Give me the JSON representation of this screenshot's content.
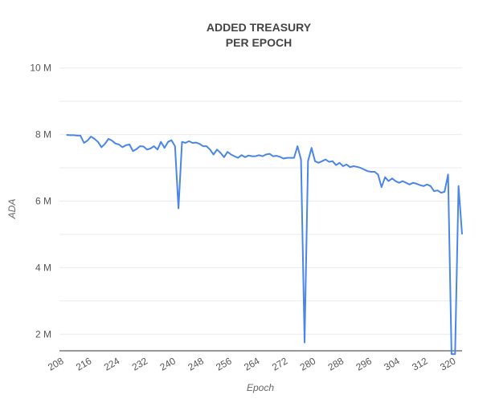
{
  "chart_data": {
    "type": "line",
    "title": [
      "ADDED TREASURY",
      "PER EPOCH"
    ],
    "xlabel": "Epoch",
    "ylabel": "ADA",
    "xlim": [
      208,
      323
    ],
    "ylim": [
      1.5,
      10.5
    ],
    "x_ticks": [
      208,
      216,
      224,
      232,
      240,
      248,
      256,
      264,
      272,
      280,
      288,
      296,
      304,
      312,
      320
    ],
    "y_ticks": [
      2,
      4,
      6,
      8,
      10
    ],
    "y_tick_labels": [
      "2 M",
      "4 M",
      "6 M",
      "8 M",
      "10 M"
    ],
    "grid": true,
    "legend": "none",
    "colors": {
      "line": "#4a86e8"
    },
    "series": [
      {
        "x": [
          210,
          211,
          212,
          213,
          214,
          215,
          216,
          217,
          218,
          219,
          220,
          221,
          222,
          223,
          224,
          225,
          226,
          227,
          228,
          229,
          230,
          231,
          232,
          233,
          234,
          235,
          236,
          237,
          238,
          239,
          240,
          241,
          242,
          243,
          244,
          245,
          246,
          247,
          248,
          249,
          250,
          251,
          252,
          253,
          254,
          255,
          256,
          257,
          258,
          259,
          260,
          261,
          262,
          263,
          264,
          265,
          266,
          267,
          268,
          269,
          270,
          271,
          272,
          273,
          274,
          275,
          276,
          277,
          278,
          279,
          280,
          281,
          282,
          283,
          284,
          285,
          286,
          287,
          288,
          289,
          290,
          291,
          292,
          293,
          294,
          295,
          296,
          297,
          298,
          299,
          300,
          301,
          302,
          303,
          304,
          305,
          306,
          307,
          308,
          309,
          310,
          311,
          312,
          313,
          314,
          315,
          316,
          317,
          318,
          319,
          320,
          321,
          322,
          323
        ],
        "values": [
          7.99,
          7.98,
          7.98,
          7.97,
          7.97,
          7.75,
          7.82,
          7.94,
          7.87,
          7.78,
          7.62,
          7.72,
          7.87,
          7.82,
          7.73,
          7.7,
          7.62,
          7.68,
          7.7,
          7.5,
          7.56,
          7.65,
          7.64,
          7.55,
          7.58,
          7.65,
          7.55,
          7.78,
          7.6,
          7.78,
          7.83,
          7.65,
          5.78,
          7.78,
          7.75,
          7.8,
          7.75,
          7.76,
          7.72,
          7.65,
          7.65,
          7.55,
          7.4,
          7.55,
          7.45,
          7.32,
          7.48,
          7.4,
          7.35,
          7.3,
          7.38,
          7.32,
          7.37,
          7.35,
          7.35,
          7.38,
          7.35,
          7.4,
          7.42,
          7.35,
          7.36,
          7.33,
          7.28,
          7.3,
          7.3,
          7.3,
          7.65,
          7.25,
          1.75,
          7.2,
          7.6,
          7.2,
          7.15,
          7.2,
          7.25,
          7.18,
          7.2,
          7.08,
          7.15,
          7.05,
          7.1,
          7.02,
          7.05,
          7.03,
          7.0,
          6.95,
          6.9,
          6.88,
          6.88,
          6.8,
          6.42,
          6.72,
          6.6,
          6.68,
          6.6,
          6.55,
          6.6,
          6.55,
          6.5,
          6.55,
          6.52,
          6.48,
          6.45,
          6.5,
          6.45,
          6.3,
          6.32,
          6.25,
          6.28,
          6.8,
          1.4,
          1.4,
          6.45,
          5.0
        ]
      }
    ]
  }
}
